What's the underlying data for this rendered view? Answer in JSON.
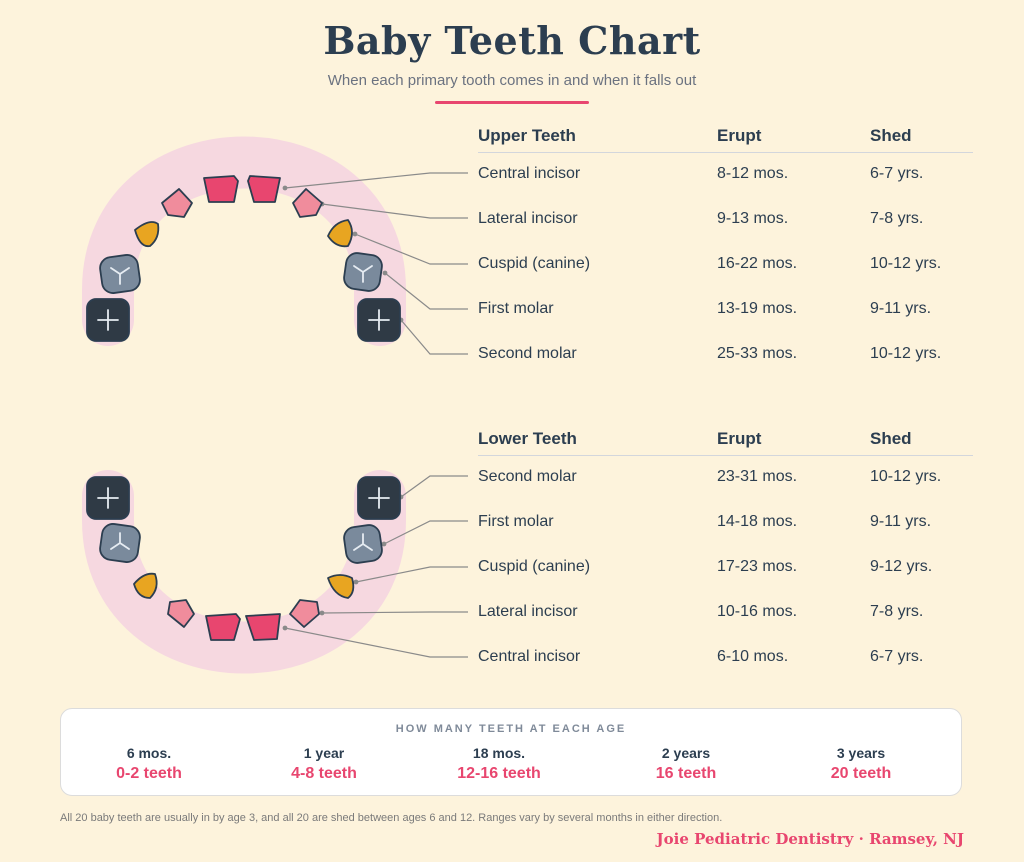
{
  "header": {
    "title": "Baby Teeth Chart",
    "subtitle": "When each primary tooth comes in and when it falls out"
  },
  "colors": {
    "incisor": "#e8466f",
    "lateral_incisor": "#f08c9c",
    "canine": "#e8a521",
    "first_molar": "#7a8a9c",
    "second_molar": "#2f3a45",
    "arch": "#f6d8e0",
    "accent": "#e8466f"
  },
  "upper": {
    "headers": {
      "tooth": "Upper Teeth",
      "erupt": "Erupt",
      "shed": "Shed"
    },
    "rows": [
      {
        "tooth": "Central incisor",
        "erupt": "8-12 mos.",
        "shed": "6-7 yrs."
      },
      {
        "tooth": "Lateral incisor",
        "erupt": "9-13 mos.",
        "shed": "7-8 yrs."
      },
      {
        "tooth": "Cuspid (canine)",
        "erupt": "16-22 mos.",
        "shed": "10-12 yrs."
      },
      {
        "tooth": "First molar",
        "erupt": "13-19 mos.",
        "shed": "9-11 yrs."
      },
      {
        "tooth": "Second molar",
        "erupt": "25-33 mos.",
        "shed": "10-12 yrs."
      }
    ]
  },
  "lower": {
    "headers": {
      "tooth": "Lower Teeth",
      "erupt": "Erupt",
      "shed": "Shed"
    },
    "rows": [
      {
        "tooth": "Second molar",
        "erupt": "23-31 mos.",
        "shed": "10-12 yrs."
      },
      {
        "tooth": "First molar",
        "erupt": "14-18 mos.",
        "shed": "9-11 yrs."
      },
      {
        "tooth": "Cuspid (canine)",
        "erupt": "17-23 mos.",
        "shed": "9-12 yrs."
      },
      {
        "tooth": "Lateral incisor",
        "erupt": "10-16 mos.",
        "shed": "7-8 yrs."
      },
      {
        "tooth": "Central incisor",
        "erupt": "6-10 mos.",
        "shed": "6-7 yrs."
      }
    ]
  },
  "counts": {
    "title": "HOW MANY TEETH AT EACH AGE",
    "items": [
      {
        "age": "6 mos.",
        "teeth": "0-2 teeth"
      },
      {
        "age": "1 year",
        "teeth": "4-8 teeth"
      },
      {
        "age": "18 mos.",
        "teeth": "12-16 teeth"
      },
      {
        "age": "2 years",
        "teeth": "16 teeth"
      },
      {
        "age": "3 years",
        "teeth": "20 teeth"
      }
    ]
  },
  "footnote": "All 20 baby teeth are usually in by age 3, and all 20 are shed between ages 6 and 12. Ranges vary by several months in either direction.",
  "brand": "Joie Pediatric Dentistry · Ramsey, NJ"
}
